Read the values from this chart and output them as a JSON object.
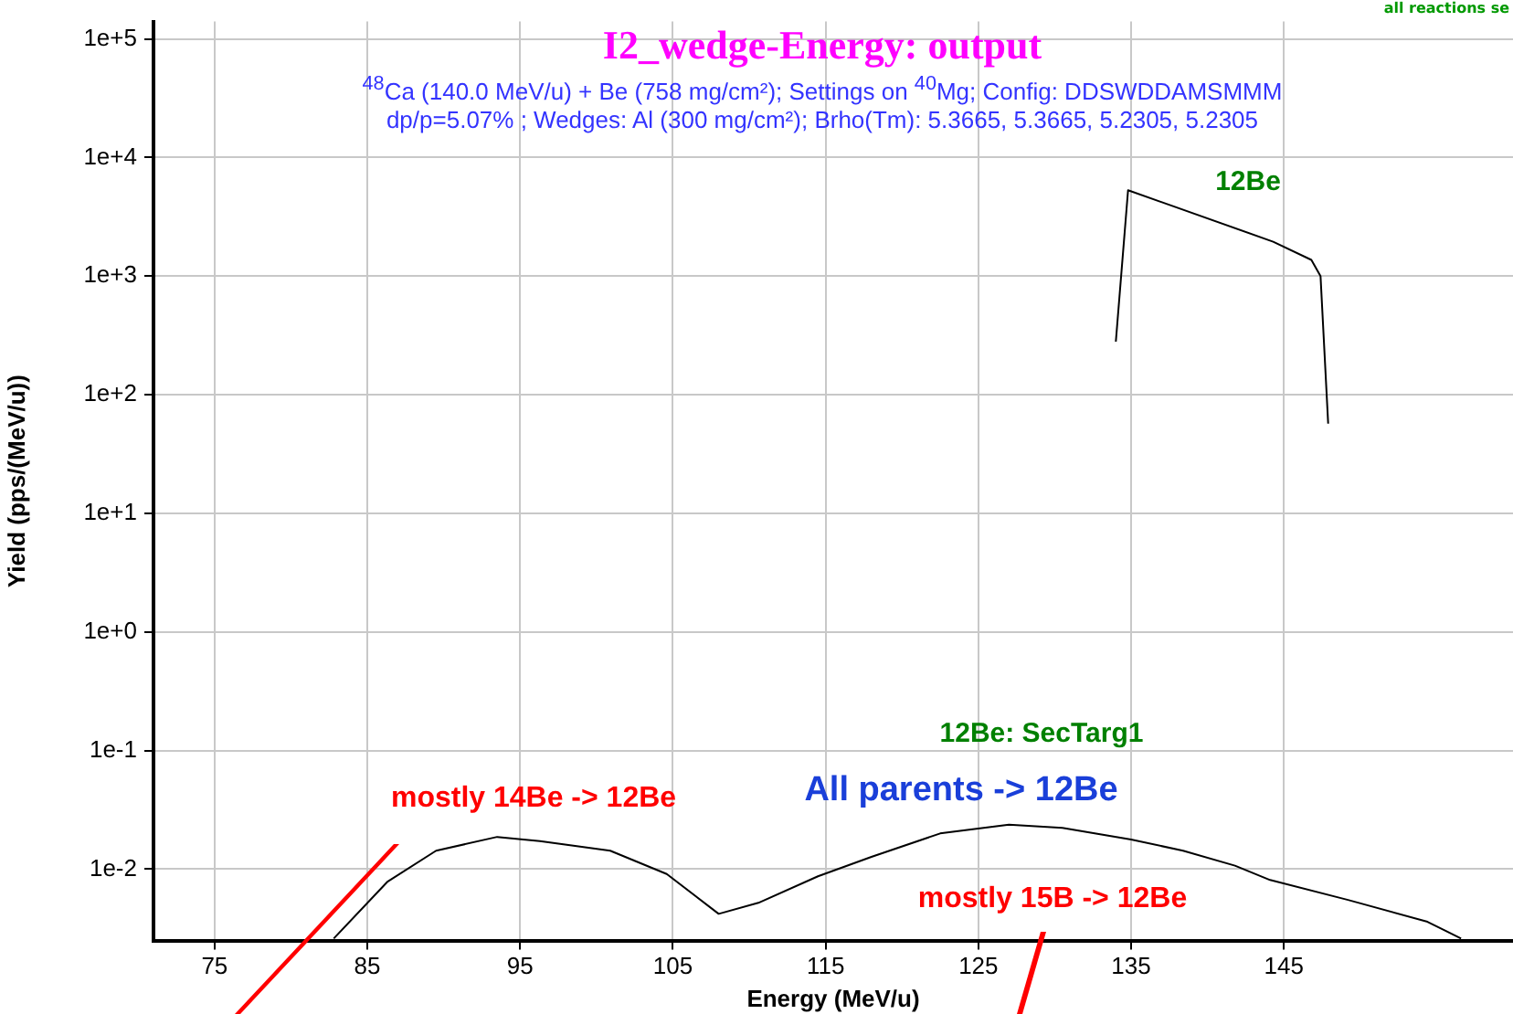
{
  "chart_data": {
    "type": "line",
    "title": "I2_wedge-Energy:  output",
    "subtitle": "$^{48}$Ca (140.0 MeV/u) + Be (758 mg/cm²);  Settings on $^{40}$Mg;  Config: DDSWDDAMSMMM\ndp/p=5.07% ; Wedges: Al (300 mg/cm²); Brho(Tm): 5.3665, 5.3665, 5.2305, 5.2305",
    "xlabel": "Energy (MeV/u)",
    "ylabel": "Yield (pps/(MeV/u))",
    "log": "y",
    "grid": true,
    "legend": false,
    "xlim": [
      71,
      160
    ],
    "xticks": [
      75,
      85,
      95,
      105,
      115,
      125,
      135,
      145
    ],
    "ylim": [
      0.0025,
      140000
    ],
    "yticks": [
      {
        "value": 0.01,
        "label": "1e-2"
      },
      {
        "value": 0.1,
        "label": "1e-1"
      },
      {
        "value": 1,
        "label": "1e+0"
      },
      {
        "value": 10,
        "label": "1e+1"
      },
      {
        "value": 100,
        "label": "1e+2"
      },
      {
        "value": 1000,
        "label": "1e+3"
      },
      {
        "value": 10000,
        "label": "1e+4"
      },
      {
        "value": 100000,
        "label": "1e+5"
      }
    ],
    "series": [
      {
        "color": "#000000",
        "x": [
          134.0,
          134.8,
          144.3,
          146.8,
          147.4,
          147.9
        ],
        "values": [
          280,
          5300,
          1950,
          1370,
          1000,
          57
        ]
      },
      {
        "color": "#000000",
        "x": [
          82.8,
          86.3,
          89.5,
          93.5,
          96.3,
          100.9,
          104.6,
          108.0,
          110.6,
          114.5,
          118.0,
          122.5,
          127.0,
          130.5,
          135.0,
          138.4,
          141.8,
          144.1,
          149.2,
          154.4,
          156.6
        ],
        "values": [
          0.0026,
          0.0078,
          0.0143,
          0.0187,
          0.0172,
          0.0143,
          0.0091,
          0.0042,
          0.0052,
          0.0087,
          0.0127,
          0.02,
          0.0237,
          0.0223,
          0.0178,
          0.0143,
          0.0107,
          0.0081,
          0.0055,
          0.0036,
          0.0026
        ]
      }
    ],
    "annotations": [
      "12Be",
      "12Be: SecTarg1",
      "All parents -> 12Be",
      "mostly 14Be -> 12Be",
      "mostly 15B -> 12Be",
      "all reactions se"
    ]
  }
}
